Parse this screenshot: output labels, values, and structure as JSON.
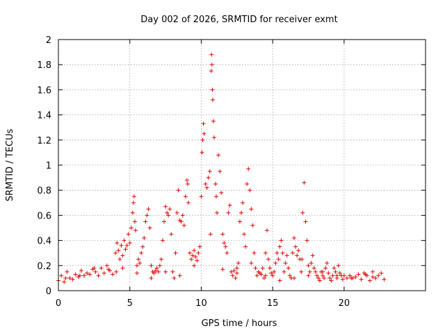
{
  "chart_data": {
    "type": "scatter",
    "title": "Day 002 of 2026, SRMTID for receiver exmt",
    "xlabel": "GPS time / hours",
    "ylabel": "SRMTID / TECUs",
    "xlim": [
      0,
      25.7
    ],
    "ylim": [
      0,
      2
    ],
    "xticks": [
      0,
      5,
      10,
      15,
      20
    ],
    "yticks": [
      0,
      0.2,
      0.4,
      0.6,
      0.8,
      1,
      1.2,
      1.4,
      1.6,
      1.8,
      2
    ],
    "xtick_labels": [
      "0",
      "5",
      "10",
      "15",
      "20"
    ],
    "ytick_labels": [
      "0",
      "0.2",
      "0.4",
      "0.6",
      "0.8",
      "1",
      "1.2",
      "1.4",
      "1.6",
      "1.8",
      "2"
    ],
    "grid": true,
    "marker": "plus",
    "series": [
      {
        "name": "SRMTID",
        "color": "#e00000",
        "x": [
          0.0,
          0.2,
          0.4,
          0.6,
          0.8,
          1.0,
          1.2,
          1.4,
          1.6,
          1.8,
          2.0,
          2.2,
          2.4,
          2.6,
          2.8,
          3.0,
          3.2,
          3.4,
          3.6,
          3.8,
          4.0,
          4.05,
          4.1,
          4.2,
          4.3,
          4.4,
          4.5,
          4.6,
          4.7,
          4.8,
          4.9,
          5.0,
          5.1,
          5.2,
          5.25,
          5.3,
          5.35,
          5.4,
          5.5,
          5.6,
          5.7,
          5.8,
          5.9,
          6.0,
          6.1,
          6.2,
          6.3,
          6.4,
          6.5,
          6.6,
          6.7,
          6.8,
          6.9,
          7.0,
          7.1,
          7.2,
          7.3,
          7.4,
          7.5,
          7.6,
          7.7,
          7.8,
          7.9,
          8.0,
          8.1,
          8.2,
          8.3,
          8.4,
          8.5,
          8.6,
          8.7,
          8.8,
          8.9,
          9.0,
          9.05,
          9.1,
          9.2,
          9.3,
          9.4,
          9.5,
          9.6,
          9.7,
          9.8,
          9.9,
          10.0,
          10.05,
          10.1,
          10.15,
          10.2,
          10.3,
          10.4,
          10.5,
          10.6,
          10.65,
          10.7,
          10.72,
          10.75,
          10.78,
          10.8,
          10.85,
          10.9,
          11.0,
          11.05,
          11.1,
          11.2,
          11.3,
          11.4,
          11.5,
          11.6,
          11.7,
          11.8,
          11.9,
          12.0,
          12.1,
          12.2,
          12.3,
          12.4,
          12.5,
          12.6,
          12.7,
          12.8,
          12.9,
          13.0,
          13.1,
          13.2,
          13.3,
          13.4,
          13.5,
          13.6,
          13.7,
          13.8,
          13.9,
          14.0,
          14.1,
          14.2,
          14.3,
          14.4,
          14.5,
          14.6,
          14.7,
          14.8,
          14.9,
          15.0,
          15.1,
          15.2,
          15.3,
          15.4,
          15.5,
          15.6,
          15.7,
          15.8,
          15.9,
          16.0,
          16.1,
          16.2,
          16.3,
          16.4,
          16.5,
          16.6,
          16.7,
          16.8,
          16.9,
          17.0,
          17.05,
          17.1,
          17.2,
          17.3,
          17.4,
          17.5,
          17.6,
          17.7,
          17.8,
          17.9,
          18.0,
          18.1,
          18.2,
          18.3,
          18.4,
          18.5,
          18.6,
          18.7,
          18.8,
          18.9,
          19.0,
          19.1,
          19.2,
          19.3,
          19.4,
          19.5,
          19.6,
          19.7,
          19.8,
          19.9,
          20.0,
          20.2,
          20.4,
          20.6,
          20.8,
          21.0,
          21.2,
          21.4,
          21.6,
          21.8,
          22.0,
          22.2,
          22.4,
          22.6,
          22.8,
          22.0,
          21.5,
          20.5,
          19.5,
          18.5,
          17.5,
          16.5,
          15.5,
          14.5,
          13.5,
          12.5,
          11.5,
          9.5,
          8.5,
          7.5,
          6.5,
          5.5,
          4.5,
          3.5,
          2.5,
          1.5,
          0.5
        ],
        "y": [
          0.08,
          0.12,
          0.07,
          0.15,
          0.1,
          0.09,
          0.13,
          0.11,
          0.16,
          0.12,
          0.14,
          0.13,
          0.17,
          0.15,
          0.12,
          0.18,
          0.14,
          0.2,
          0.16,
          0.13,
          0.3,
          0.15,
          0.38,
          0.32,
          0.25,
          0.36,
          0.28,
          0.4,
          0.33,
          0.36,
          0.45,
          0.38,
          0.5,
          0.62,
          0.7,
          0.75,
          0.55,
          0.48,
          0.2,
          0.25,
          0.22,
          0.3,
          0.35,
          0.42,
          0.55,
          0.6,
          0.65,
          0.5,
          0.2,
          0.15,
          0.14,
          0.16,
          0.18,
          0.15,
          0.2,
          0.25,
          0.4,
          0.55,
          0.67,
          0.62,
          0.6,
          0.65,
          0.45,
          0.15,
          0.1,
          0.3,
          0.62,
          0.8,
          0.56,
          0.55,
          0.6,
          0.52,
          0.75,
          0.88,
          0.85,
          0.7,
          0.3,
          0.25,
          0.28,
          0.32,
          0.27,
          0.24,
          0.3,
          0.35,
          0.75,
          1.1,
          1.2,
          1.33,
          1.25,
          0.85,
          0.82,
          0.9,
          0.95,
          0.45,
          1.75,
          1.88,
          1.8,
          1.6,
          1.52,
          1.35,
          1.22,
          0.85,
          0.75,
          0.62,
          1.08,
          0.95,
          0.78,
          0.45,
          0.38,
          0.35,
          0.3,
          0.62,
          0.68,
          0.15,
          0.12,
          0.16,
          0.1,
          0.18,
          0.22,
          0.55,
          0.62,
          0.7,
          0.45,
          0.35,
          0.85,
          0.97,
          0.8,
          0.65,
          0.52,
          0.3,
          0.18,
          0.12,
          0.15,
          0.14,
          0.13,
          0.18,
          0.1,
          0.3,
          0.48,
          0.25,
          0.18,
          0.14,
          0.12,
          0.15,
          0.22,
          0.3,
          0.25,
          0.35,
          0.4,
          0.3,
          0.15,
          0.22,
          0.28,
          0.18,
          0.12,
          0.1,
          0.3,
          0.42,
          0.35,
          0.28,
          0.32,
          0.25,
          0.15,
          0.25,
          0.62,
          0.86,
          0.55,
          0.4,
          0.2,
          0.15,
          0.22,
          0.28,
          0.18,
          0.15,
          0.12,
          0.1,
          0.08,
          0.15,
          0.12,
          0.1,
          0.18,
          0.22,
          0.14,
          0.1,
          0.08,
          0.12,
          0.18,
          0.15,
          0.1,
          0.2,
          0.14,
          0.12,
          0.09,
          0.12,
          0.1,
          0.12,
          0.1,
          0.11,
          0.13,
          0.09,
          0.14,
          0.12,
          0.08,
          0.15,
          0.1,
          0.12,
          0.14,
          0.09,
          0.11,
          0.13,
          0.1,
          0.12,
          0.15,
          0.12,
          0.1,
          0.08,
          0.12,
          0.22,
          0.14,
          0.17,
          0.2,
          0.12,
          0.15,
          0.1,
          0.14,
          0.18,
          0.17,
          0.18,
          0.12,
          0.1
        ]
      }
    ]
  }
}
